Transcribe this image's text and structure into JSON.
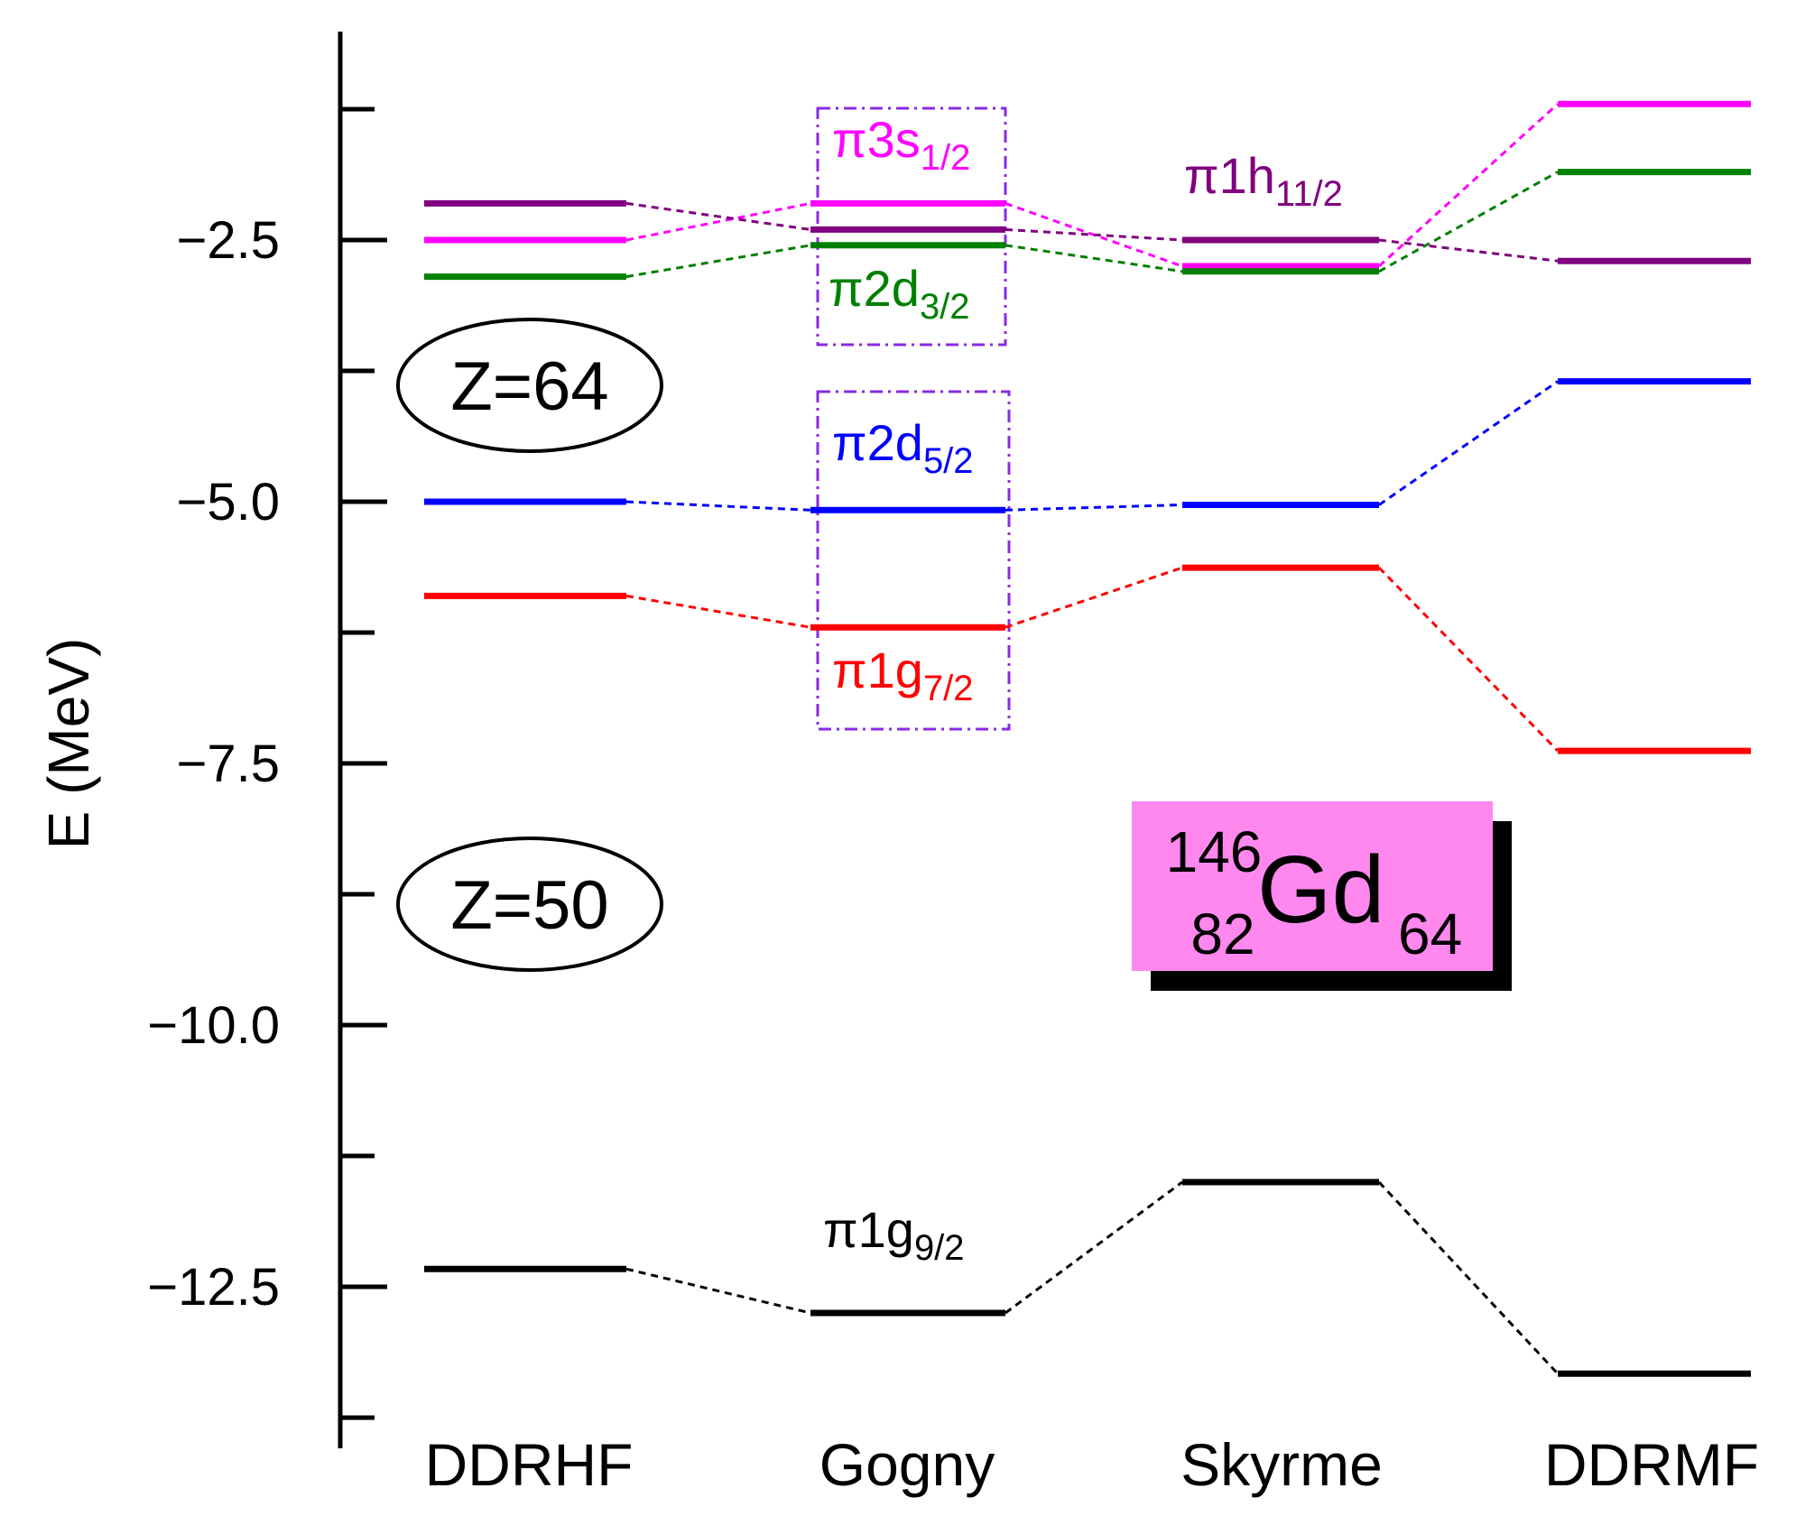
{
  "chart_data": {
    "type": "level-scheme",
    "ylabel": "E (MeV)",
    "ylim": [
      -13.8,
      -0.6
    ],
    "yticks": [
      -2.5,
      -5.0,
      -7.5,
      -10.0,
      -12.5
    ],
    "ytick_labels": [
      "−2.5",
      "−5.0",
      "−7.5",
      "−10.0",
      "−12.5"
    ],
    "categories": [
      "DDRHF",
      "Gogny",
      "Skyrme",
      "DDRMF"
    ],
    "series": [
      {
        "key": "3s",
        "name": "π3s",
        "sub": "1/2",
        "color": "#ff00ff",
        "values": [
          -2.5,
          -2.15,
          -2.75,
          -1.2
        ]
      },
      {
        "key": "1h",
        "name": "π1h",
        "sub": "11/2",
        "color": "#800080",
        "values": [
          -2.15,
          -2.4,
          -2.5,
          -2.7
        ]
      },
      {
        "key": "2d32",
        "name": "π2d",
        "sub": "3/2",
        "color": "#008000",
        "values": [
          -2.85,
          -2.55,
          -2.8,
          -1.85
        ]
      },
      {
        "key": "2d52",
        "name": "π2d",
        "sub": "5/2",
        "color": "#0000ff",
        "values": [
          -5.0,
          -5.08,
          -5.03,
          -3.85
        ]
      },
      {
        "key": "1g72",
        "name": "π1g",
        "sub": "7/2",
        "color": "#ff0000",
        "values": [
          -5.9,
          -6.2,
          -5.63,
          -7.38
        ]
      },
      {
        "key": "1g92",
        "name": "π1g",
        "sub": "9/2",
        "color": "#000000",
        "values": [
          -12.33,
          -12.75,
          -11.5,
          -13.33
        ]
      }
    ],
    "annotations": {
      "shell_64": "Z=64",
      "shell_50": "Z=50",
      "nucleus": {
        "mass": "146",
        "proton": "82",
        "symbol": "Gd",
        "neutron": "64"
      }
    },
    "box_color": "#8a2be2",
    "label_box_color": "#ff88ee"
  }
}
